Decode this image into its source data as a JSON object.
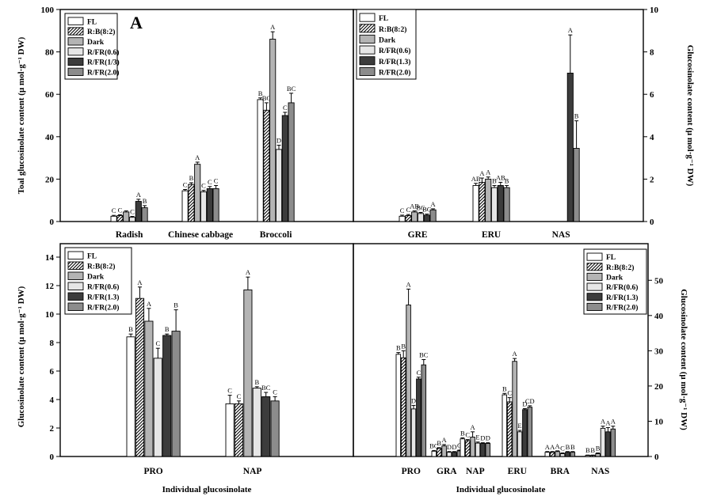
{
  "chart_data": [
    {
      "id": "A",
      "type": "bar",
      "panel_label": "A",
      "ylabel": "Toal glucosinolate content (μ mol·g⁻¹ DW)",
      "xlabel": "",
      "ylim": [
        0,
        100
      ],
      "yticks": [
        "0",
        "20",
        "40",
        "60",
        "80",
        "100"
      ],
      "categories": [
        "Radish",
        "Chinese cabbage",
        "Broccoli"
      ],
      "legend": [
        "FL",
        "R:B(8:2)",
        "Dark",
        "R/FR(0.6)",
        "R/FR(1/3)",
        "R/FR(2.0)"
      ],
      "series": [
        {
          "name": "FL",
          "values": [
            2.5,
            14.5,
            57.5
          ],
          "errors": [
            0.4,
            0.6,
            0.8
          ],
          "labels": [
            "C",
            "C",
            "B"
          ]
        },
        {
          "name": "R:B(8:2)",
          "values": [
            2.8,
            17.5,
            52.5
          ],
          "errors": [
            0.4,
            0.8,
            3.5
          ],
          "labels": [
            "C",
            "B",
            "BC"
          ]
        },
        {
          "name": "Dark",
          "values": [
            4.5,
            27.0,
            86.0
          ],
          "errors": [
            0.5,
            1.0,
            3.5
          ],
          "labels": [
            "",
            "A",
            "A"
          ]
        },
        {
          "name": "R/FR(0.6)",
          "values": [
            2.0,
            14.0,
            34.0
          ],
          "errors": [
            0.4,
            0.7,
            2.0
          ],
          "labels": [
            "C",
            "C",
            "D"
          ]
        },
        {
          "name": "R/FR(1/3)",
          "values": [
            9.5,
            15.5,
            50.0
          ],
          "errors": [
            1.0,
            1.0,
            1.5
          ],
          "labels": [
            "A",
            "C",
            "C"
          ]
        },
        {
          "name": "R/FR(2.0)",
          "values": [
            6.5,
            15.5,
            56.0
          ],
          "errors": [
            1.0,
            1.5,
            4.5
          ],
          "labels": [
            "B",
            "C",
            "BC"
          ]
        }
      ]
    },
    {
      "id": "B",
      "type": "bar",
      "ylabel": "Glucosinolate content (μ mol·g⁻¹ DW)",
      "xlabel": "",
      "ylim": [
        0,
        10
      ],
      "yticks": [
        "0",
        "2",
        "4",
        "6",
        "8",
        "10"
      ],
      "categories": [
        "GRE",
        "ERU",
        "NAS"
      ],
      "legend": [
        "FL",
        "R:B(8:2)",
        "Dark",
        "R/FR(0.6)",
        "R/FR(1.3)",
        "R/FR(2.0)"
      ],
      "series": [
        {
          "name": "FL",
          "values": [
            0.25,
            1.7,
            0
          ],
          "errors": [
            0.05,
            0.1,
            0
          ],
          "labels": [
            "C",
            "AB",
            ""
          ]
        },
        {
          "name": "R:B(8:2)",
          "values": [
            0.28,
            1.85,
            0
          ],
          "errors": [
            0.05,
            0.2,
            0
          ],
          "labels": [
            "C",
            "A",
            ""
          ]
        },
        {
          "name": "Dark",
          "values": [
            0.45,
            2.0,
            0
          ],
          "errors": [
            0.05,
            0.1,
            0
          ],
          "labels": [
            "AB",
            "A",
            ""
          ]
        },
        {
          "name": "R/FR(0.6)",
          "values": [
            0.38,
            1.6,
            0
          ],
          "errors": [
            0.05,
            0.1,
            0
          ],
          "labels": [
            "BC",
            "B",
            ""
          ]
        },
        {
          "name": "R/FR(1.3)",
          "values": [
            0.3,
            1.7,
            7.0
          ],
          "errors": [
            0.05,
            0.15,
            1.8
          ],
          "labels": [
            "BC",
            "AB",
            "A"
          ]
        },
        {
          "name": "R/FR(2.0)",
          "values": [
            0.55,
            1.6,
            3.45
          ],
          "errors": [
            0.05,
            0.1,
            1.3
          ],
          "labels": [
            "A",
            "B",
            "B"
          ]
        }
      ]
    },
    {
      "id": "C",
      "type": "bar",
      "ylabel": "Glucosinolate content (μ mol·g⁻¹ DW)",
      "xlabel": "Individual glucosinolate",
      "ylim": [
        0,
        14
      ],
      "yticks": [
        "0",
        "2",
        "4",
        "6",
        "8",
        "10",
        "12",
        "14"
      ],
      "categories": [
        "PRO",
        "NAP"
      ],
      "legend": [
        "FL",
        "R:B(8:2)",
        "Dark",
        "R/FR(0.6)",
        "R/FR(1.3)",
        "R/FR(2.0)"
      ],
      "series": [
        {
          "name": "FL",
          "values": [
            8.4,
            3.7
          ],
          "errors": [
            0.2,
            0.6
          ],
          "labels": [
            "B",
            "C"
          ]
        },
        {
          "name": "R:B(8:2)",
          "values": [
            11.1,
            3.7
          ],
          "errors": [
            0.8,
            0.2
          ],
          "labels": [
            "A",
            "C"
          ]
        },
        {
          "name": "Dark",
          "values": [
            9.5,
            11.7
          ],
          "errors": [
            0.9,
            0.9
          ],
          "labels": [
            "A",
            "A"
          ]
        },
        {
          "name": "R/FR(0.6)",
          "values": [
            6.9,
            4.8
          ],
          "errors": [
            0.7,
            0.1
          ],
          "labels": [
            "C",
            "B"
          ]
        },
        {
          "name": "R/FR(1.3)",
          "values": [
            8.5,
            4.2
          ],
          "errors": [
            0.1,
            0.3
          ],
          "labels": [
            "B",
            "BC"
          ]
        },
        {
          "name": "R/FR(2.0)",
          "values": [
            8.8,
            3.9
          ],
          "errors": [
            1.5,
            0.3
          ],
          "labels": [
            "B",
            "C"
          ]
        }
      ]
    },
    {
      "id": "D",
      "type": "bar",
      "ylabel": "Glucosinolate content (μ mol·g⁻¹ DW)",
      "xlabel": "Individual glucosinolate",
      "ylim": [
        0,
        55
      ],
      "yticks": [
        "0",
        "10",
        "20",
        "30",
        "40",
        "50"
      ],
      "categories": [
        "PRO",
        "GRA",
        "NAP",
        "ERU",
        "BRA",
        "NAS"
      ],
      "legend": [
        "FL",
        "R:B(8:2)",
        "Dark",
        "R/FR(0.6)",
        "R/FR(1.3)",
        "R/FR(2.0)"
      ],
      "series": [
        {
          "name": "FL",
          "values": [
            29.0,
            1.5,
            5.0,
            17.5,
            1.2,
            0.3
          ],
          "errors": [
            0.5,
            0.2,
            0.3,
            0.4,
            0.2,
            0.1
          ],
          "labels": [
            "B",
            "BC",
            "B",
            "B",
            "A",
            "B"
          ]
        },
        {
          "name": "R:B(8:2)",
          "values": [
            28.0,
            2.3,
            4.5,
            15.5,
            1.2,
            0.3
          ],
          "errors": [
            2.0,
            0.2,
            0.3,
            1.2,
            0.2,
            0.1
          ],
          "labels": [
            "B",
            "B",
            "C",
            "C",
            "A",
            "B"
          ]
        },
        {
          "name": "Dark",
          "values": [
            43.0,
            3.0,
            5.5,
            27.0,
            1.4,
            0.8
          ],
          "errors": [
            4.5,
            0.4,
            1.5,
            0.8,
            0.2,
            0.2
          ],
          "labels": [
            "A",
            "A",
            "A",
            "A",
            "A",
            "B"
          ]
        },
        {
          "name": "R/FR(0.6)",
          "values": [
            13.5,
            1.2,
            3.8,
            7.0,
            0.8,
            8.0
          ],
          "errors": [
            1.0,
            0.2,
            0.3,
            0.4,
            0.2,
            0.6
          ],
          "labels": [
            "D",
            "D",
            "E",
            "E",
            "C",
            "A"
          ]
        },
        {
          "name": "R/FR(1.3)",
          "values": [
            22.0,
            1.2,
            3.7,
            13.3,
            1.2,
            7.0
          ],
          "errors": [
            0.5,
            0.2,
            0.2,
            0.3,
            0.2,
            1.2
          ],
          "labels": [
            "C",
            "D",
            "D",
            "D",
            "B",
            "A"
          ]
        },
        {
          "name": "R/FR(2.0)",
          "values": [
            26.0,
            1.6,
            3.7,
            14.0,
            1.2,
            7.8
          ],
          "errors": [
            1.5,
            0.2,
            0.2,
            0.4,
            0.2,
            0.8
          ],
          "labels": [
            "BC",
            "C",
            "D",
            "CD",
            "B",
            "A"
          ]
        }
      ]
    }
  ],
  "colors": {
    "fills": [
      "#ffffff",
      "hatch",
      "#b4b4b4",
      "#e6e6e6",
      "#3c3c3c",
      "#8c8c8c"
    ],
    "axis": "#000000"
  }
}
